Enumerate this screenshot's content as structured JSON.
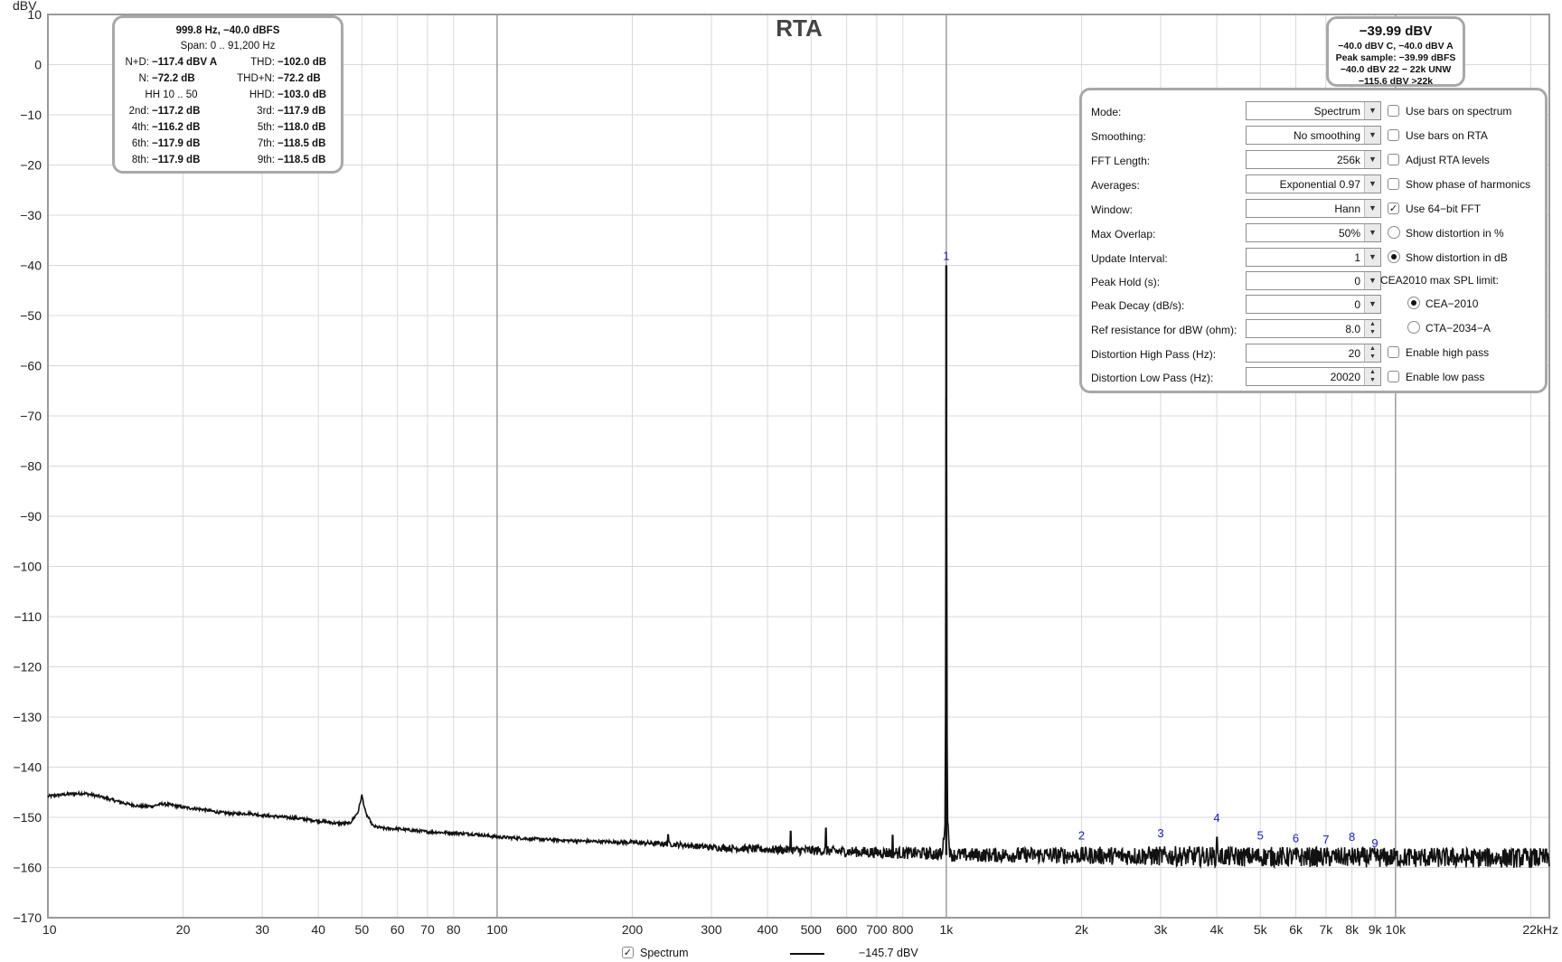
{
  "chart_data": {
    "type": "line",
    "title": "RTA",
    "ylabel": "dBV",
    "xlabel": "",
    "x_scale": "log",
    "xlim": [
      10,
      22000
    ],
    "ylim": [
      -170,
      10
    ],
    "y_ticks": [
      10,
      0,
      -10,
      -20,
      -30,
      -40,
      -50,
      -60,
      -70,
      -80,
      -90,
      -100,
      -110,
      -120,
      -130,
      -140,
      -150,
      -160,
      -170
    ],
    "x_ticks": [
      {
        "v": 10,
        "t": "10"
      },
      {
        "v": 20,
        "t": "20"
      },
      {
        "v": 30,
        "t": "30"
      },
      {
        "v": 40,
        "t": "40"
      },
      {
        "v": 50,
        "t": "50"
      },
      {
        "v": 60,
        "t": "60"
      },
      {
        "v": 70,
        "t": "70"
      },
      {
        "v": 80,
        "t": "80"
      },
      {
        "v": 100,
        "t": "100"
      },
      {
        "v": 200,
        "t": "200"
      },
      {
        "v": 300,
        "t": "300"
      },
      {
        "v": 400,
        "t": "400"
      },
      {
        "v": 500,
        "t": "500"
      },
      {
        "v": 600,
        "t": "600"
      },
      {
        "v": 700,
        "t": "700"
      },
      {
        "v": 800,
        "t": "800"
      },
      {
        "v": 1000,
        "t": "1k"
      },
      {
        "v": 2000,
        "t": "2k"
      },
      {
        "v": 3000,
        "t": "3k"
      },
      {
        "v": 4000,
        "t": "4k"
      },
      {
        "v": 5000,
        "t": "5k"
      },
      {
        "v": 6000,
        "t": "6k"
      },
      {
        "v": 7000,
        "t": "7k"
      },
      {
        "v": 8000,
        "t": "8k"
      },
      {
        "v": 9000,
        "t": "9k"
      },
      {
        "v": 10000,
        "t": "10k"
      },
      {
        "v": 22000,
        "t": "22kHz"
      }
    ],
    "grid": true,
    "series": [
      {
        "name": "Spectrum",
        "color": "#111111",
        "points": [
          [
            10,
            -145.8
          ],
          [
            11,
            -145.4
          ],
          [
            12,
            -145.2
          ],
          [
            13,
            -145.8
          ],
          [
            14,
            -146.6
          ],
          [
            15,
            -147.3
          ],
          [
            16,
            -147.8
          ],
          [
            17,
            -147.8
          ],
          [
            18,
            -147.3
          ],
          [
            19,
            -147.6
          ],
          [
            20,
            -148.0
          ],
          [
            22,
            -148.4
          ],
          [
            24,
            -149.0
          ],
          [
            26,
            -149.3
          ],
          [
            28,
            -149.2
          ],
          [
            30,
            -149.6
          ],
          [
            33,
            -149.9
          ],
          [
            36,
            -150.2
          ],
          [
            40,
            -150.7
          ],
          [
            44,
            -151.2
          ],
          [
            47,
            -151.2
          ],
          [
            49,
            -149.0
          ],
          [
            50,
            -145.6
          ],
          [
            51,
            -149.2
          ],
          [
            53,
            -151.8
          ],
          [
            56,
            -152.2
          ],
          [
            60,
            -152.3
          ],
          [
            65,
            -152.6
          ],
          [
            70,
            -152.9
          ],
          [
            80,
            -153.1
          ],
          [
            90,
            -153.4
          ],
          [
            100,
            -153.9
          ],
          [
            120,
            -154.3
          ],
          [
            150,
            -154.7
          ],
          [
            200,
            -155.0
          ],
          [
            250,
            -155.4
          ],
          [
            300,
            -156.0
          ],
          [
            400,
            -156.4
          ],
          [
            500,
            -156.6
          ],
          [
            700,
            -157.0
          ],
          [
            900,
            -157.2
          ],
          [
            980,
            -157.4
          ],
          [
            995,
            -150.0
          ],
          [
            999.8,
            -40.0
          ],
          [
            1005,
            -150.0
          ],
          [
            1020,
            -157.5
          ],
          [
            1500,
            -157.5
          ],
          [
            2000,
            -157.6
          ],
          [
            3000,
            -157.7
          ],
          [
            4000,
            -157.8
          ],
          [
            6000,
            -157.9
          ],
          [
            10000,
            -158.0
          ],
          [
            22000,
            -158.1
          ]
        ],
        "spurs": [
          [
            240,
            -153.5
          ],
          [
            450,
            -152.8
          ],
          [
            540,
            -152.2
          ],
          [
            760,
            -153.6
          ],
          [
            4000,
            -154.0
          ]
        ],
        "noise_db": 2.0
      }
    ],
    "harmonics": [
      {
        "label": "1",
        "f": 999.8,
        "y": -40.0
      },
      {
        "label": "2",
        "f": 1999.6,
        "y": -155.5
      },
      {
        "label": "3",
        "f": 2999.4,
        "y": -155.0
      },
      {
        "label": "4",
        "f": 3999.2,
        "y": -152.0
      },
      {
        "label": "5",
        "f": 4999.0,
        "y": -155.5
      },
      {
        "label": "6",
        "f": 5998.8,
        "y": -156.0
      },
      {
        "label": "7",
        "f": 6998.6,
        "y": -156.3
      },
      {
        "label": "8",
        "f": 7998.4,
        "y": -155.8
      },
      {
        "label": "9",
        "f": 8998.2,
        "y": -157.0
      }
    ],
    "legend": {
      "label": "Spectrum",
      "checked": true,
      "value": "−145.7 dBV"
    }
  },
  "readout": {
    "header": "999.8 Hz, −40.0 dBFS",
    "span": "Span: 0 .. 91,200 Hz",
    "rows": [
      [
        {
          "l": "N+D:",
          "v": "−117.4 dBV A"
        },
        {
          "l": "THD:",
          "v": "−102.0 dB"
        }
      ],
      [
        {
          "l": "N:",
          "v": "−72.2 dB"
        },
        {
          "l": "THD+N:",
          "v": "−72.2 dB"
        }
      ],
      [
        {
          "l": "2nd:",
          "v": "−117.2 dB"
        },
        {
          "l": "3rd:",
          "v": "−117.9 dB"
        }
      ],
      [
        {
          "l": "4th:",
          "v": "−116.2 dB"
        },
        {
          "l": "5th:",
          "v": "−118.0 dB"
        }
      ],
      [
        {
          "l": "6th:",
          "v": "−117.9 dB"
        },
        {
          "l": "7th:",
          "v": "−118.5 dB"
        }
      ],
      [
        {
          "l": "8th:",
          "v": "−117.9 dB"
        },
        {
          "l": "9th:",
          "v": "−118.5 dB"
        }
      ]
    ],
    "hh": "HH 10 .. 50",
    "hhd_label": "HHD:",
    "hhd_value": "−103.0 dB"
  },
  "level": {
    "main": "−39.99 dBV",
    "line1": "−40.0 dBV C, −40.0 dBV A",
    "line2": "Peak sample: −39.99 dBFS",
    "line3": "−40.0 dBV 22 − 22k UNW",
    "line4": "−115.6 dBV >22k"
  },
  "settings": {
    "fields": [
      {
        "label": "Mode:",
        "value": "Spectrum"
      },
      {
        "label": "Smoothing:",
        "value": "No  smoothing"
      },
      {
        "label": "FFT Length:",
        "value": "256k"
      },
      {
        "label": "Averages:",
        "value": "Exponential 0.97"
      },
      {
        "label": "Window:",
        "value": "Hann"
      },
      {
        "label": "Max Overlap:",
        "value": "50%"
      },
      {
        "label": "Update Interval:",
        "value": "1"
      },
      {
        "label": "Peak Hold (s):",
        "value": "0"
      },
      {
        "label": "Peak Decay (dB/s):",
        "value": "0"
      },
      {
        "label": "Ref resistance for dBW (ohm):",
        "value": "8.0"
      },
      {
        "label": "Distortion High Pass (Hz):",
        "value": "20"
      },
      {
        "label": "Distortion Low Pass (Hz):",
        "value": "20020"
      }
    ],
    "options": {
      "bars_spectrum": "Use bars on spectrum",
      "bars_rta": "Use bars on RTA",
      "adjust_rta": "Adjust RTA levels",
      "phase_harmonics": "Show phase of harmonics",
      "fft64": "Use 64−bit FFT",
      "dist_percent": "Show distortion in %",
      "dist_db": "Show distortion in dB",
      "cea_heading": "CEA2010 max SPL limit:",
      "cea2010": "CEA−2010",
      "cta2034": "CTA−2034−A",
      "high_pass": "Enable high pass",
      "low_pass": "Enable low pass"
    },
    "checked": {
      "fft64": true,
      "dist_db": true,
      "cea2010": true
    }
  }
}
